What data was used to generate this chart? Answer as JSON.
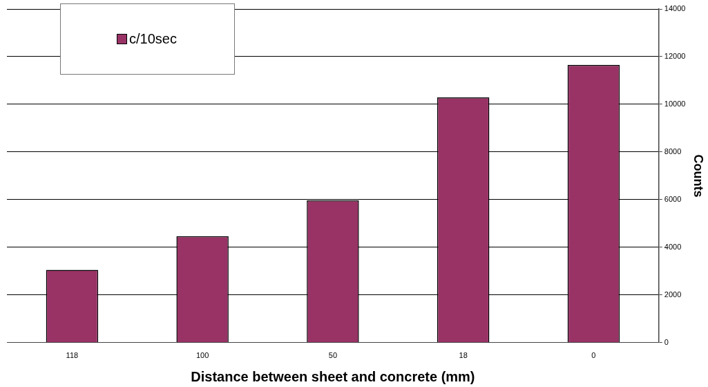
{
  "chart_data": {
    "type": "bar",
    "xlabel": "Distance between sheet and concrete (mm)",
    "ylabel": "Counts",
    "categories": [
      "118",
      "100",
      "50",
      "18",
      "0"
    ],
    "series": [
      {
        "name": "c/10sec",
        "color": "#993366",
        "values": [
          3050,
          4470,
          5970,
          10290,
          11650
        ]
      }
    ],
    "ylim": [
      0,
      14000
    ],
    "yticks": [
      0,
      2000,
      4000,
      6000,
      8000,
      10000,
      12000,
      14000
    ],
    "grid": "y",
    "legend": "top left"
  }
}
